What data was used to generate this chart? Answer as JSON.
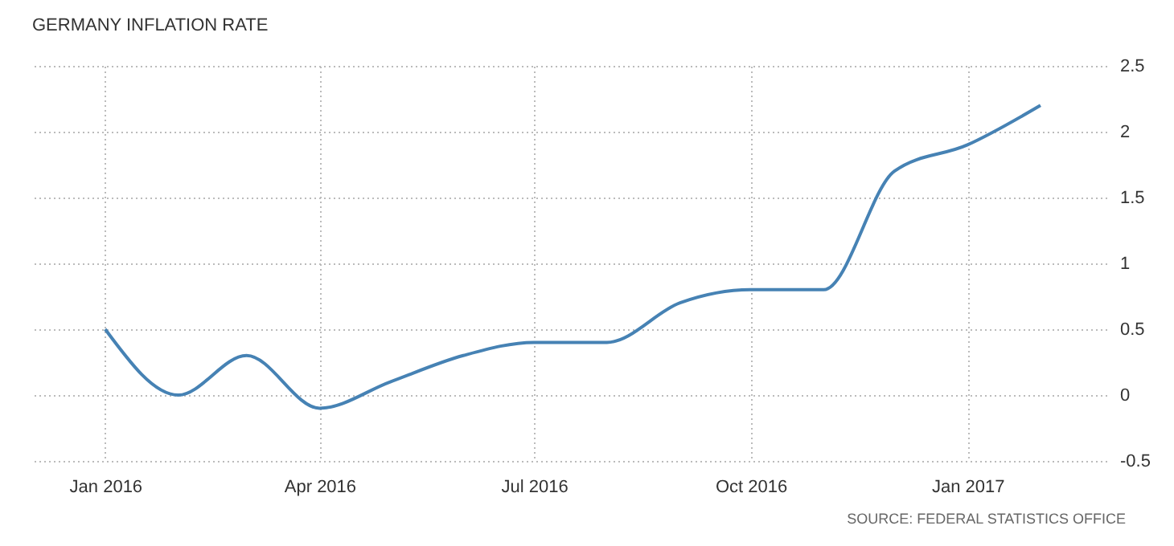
{
  "chart_data": {
    "type": "line",
    "title": "GERMANY INFLATION RATE",
    "x": [
      "2016-01",
      "2016-02",
      "2016-03",
      "2016-04",
      "2016-05",
      "2016-06",
      "2016-07",
      "2016-08",
      "2016-09",
      "2016-10",
      "2016-11",
      "2016-12",
      "2017-01",
      "2017-02"
    ],
    "series": [
      {
        "color": "#4682b4",
        "values": [
          0.5,
          0.0,
          0.3,
          -0.1,
          0.1,
          0.3,
          0.4,
          0.4,
          0.7,
          0.8,
          0.8,
          1.7,
          1.9,
          2.2
        ]
      }
    ],
    "xlim": [
      "2015-12",
      "2017-03"
    ],
    "xticks": [
      {
        "value": "2016-01",
        "label": "Jan 2016"
      },
      {
        "value": "2016-04",
        "label": "Apr 2016"
      },
      {
        "value": "2016-07",
        "label": "Jul 2016"
      },
      {
        "value": "2016-10",
        "label": "Oct 2016"
      },
      {
        "value": "2017-01",
        "label": "Jan 2017"
      }
    ],
    "ylim": [
      -0.5,
      2.5
    ],
    "yticks": [
      -0.5,
      0,
      0.5,
      1,
      1.5,
      2,
      2.5
    ],
    "grid": true,
    "line_style": "solid",
    "annotations": [
      "SOURCE: FEDERAL STATISTICS OFFICE"
    ]
  }
}
